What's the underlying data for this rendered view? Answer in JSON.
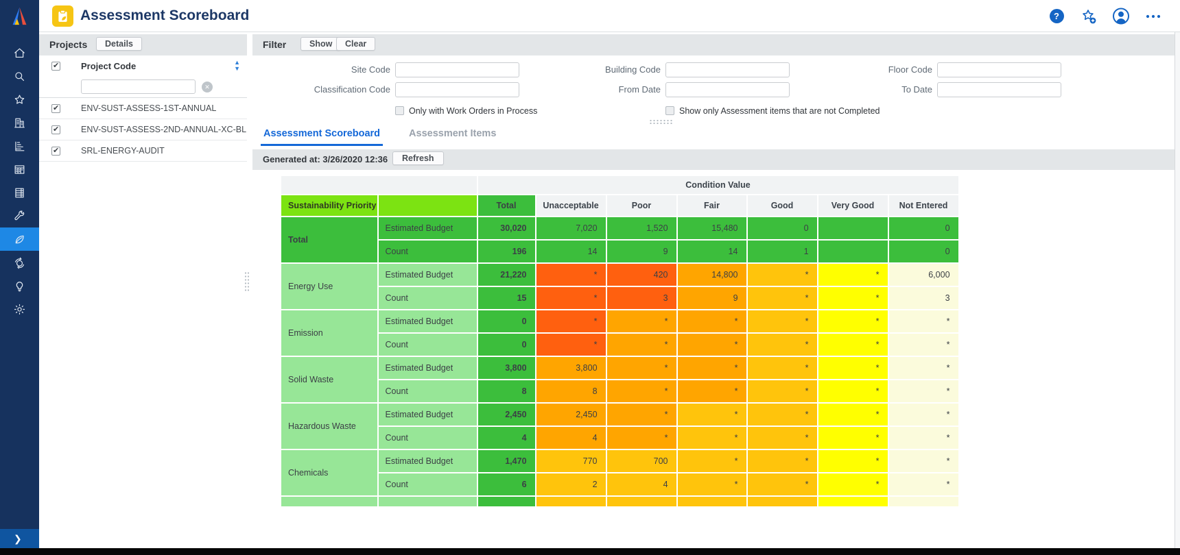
{
  "app": {
    "title": "Assessment Scoreboard"
  },
  "topbar": {
    "icons": [
      {
        "name": "help"
      },
      {
        "name": "favorite-add"
      },
      {
        "name": "user-profile"
      },
      {
        "name": "more"
      }
    ]
  },
  "sidebar": {
    "items": [
      {
        "name": "home"
      },
      {
        "name": "search"
      },
      {
        "name": "favorites"
      },
      {
        "name": "buildings"
      },
      {
        "name": "reports"
      },
      {
        "name": "planner"
      },
      {
        "name": "records"
      },
      {
        "name": "tools"
      },
      {
        "name": "sustainability"
      },
      {
        "name": "globe"
      },
      {
        "name": "ideas"
      },
      {
        "name": "settings"
      }
    ],
    "active": "sustainability",
    "expand_chevron": "❯"
  },
  "projects": {
    "title": "Projects",
    "details_button": "Details",
    "column_header": "Project Code",
    "select_all_checked": true,
    "filter_value": "",
    "rows": [
      {
        "code": "ENV-SUST-ASSESS-1ST-ANNUAL",
        "checked": true
      },
      {
        "code": "ENV-SUST-ASSESS-2ND-ANNUAL-XC-BL",
        "checked": true
      },
      {
        "code": "SRL-ENERGY-AUDIT",
        "checked": true
      }
    ]
  },
  "filter": {
    "title": "Filter",
    "buttons": {
      "show": "Show",
      "clear": "Clear"
    },
    "fields": [
      {
        "label": "Site Code",
        "value": ""
      },
      {
        "label": "Building Code",
        "value": ""
      },
      {
        "label": "Floor Code",
        "value": ""
      },
      {
        "label": "Classification Code",
        "value": ""
      },
      {
        "label": "From Date",
        "value": ""
      },
      {
        "label": "To Date",
        "value": ""
      }
    ],
    "checkboxes": [
      {
        "label": "Only with Work Orders in Process",
        "checked": false
      },
      {
        "label": "Show only Assessment items that are not Completed",
        "checked": false
      }
    ]
  },
  "tabs": [
    {
      "label": "Assessment Scoreboard",
      "active": true
    },
    {
      "label": "Assessment Items",
      "active": false
    }
  ],
  "toolbar": {
    "generated_at": "Generated at: 3/26/2020 12:36",
    "refresh": "Refresh"
  },
  "scoreboard": {
    "condition_header": "Condition Value",
    "row_axis_label": "Sustainability Priority",
    "columns": [
      "Total",
      "Unacceptable",
      "Poor",
      "Fair",
      "Good",
      "Very Good",
      "Not Entered"
    ],
    "metrics": [
      "Estimated Budget",
      "Count"
    ],
    "colors": {
      "green": "#3cbe3c",
      "lime": "#7ce312",
      "lightgreen": "#97e697",
      "redorange": "#ff600f",
      "orange": "#ffa500",
      "amber": "#ffc40c",
      "yellow": "#ffff00",
      "cream": "#fbfbdc"
    },
    "groups": [
      {
        "category": "Total",
        "bold": true,
        "band": "green",
        "rows": [
          {
            "metric": "Estimated Budget",
            "cells": [
              {
                "v": "30,020",
                "c": "green"
              },
              {
                "v": "7,020",
                "c": "green"
              },
              {
                "v": "1,520",
                "c": "green"
              },
              {
                "v": "15,480",
                "c": "green"
              },
              {
                "v": "0",
                "c": "green"
              },
              {
                "v": "",
                "c": "green"
              },
              {
                "v": "0",
                "c": "green"
              }
            ]
          },
          {
            "metric": "Count",
            "cells": [
              {
                "v": "196",
                "c": "green"
              },
              {
                "v": "14",
                "c": "green"
              },
              {
                "v": "9",
                "c": "green"
              },
              {
                "v": "14",
                "c": "green"
              },
              {
                "v": "1",
                "c": "green"
              },
              {
                "v": "",
                "c": "green"
              },
              {
                "v": "0",
                "c": "green"
              }
            ]
          }
        ]
      },
      {
        "category": "Energy Use",
        "bold": false,
        "band": "lightgreen",
        "rows": [
          {
            "metric": "Estimated Budget",
            "cells": [
              {
                "v": "21,220",
                "c": "green"
              },
              {
                "v": "*",
                "c": "redorange"
              },
              {
                "v": "420",
                "c": "redorange"
              },
              {
                "v": "14,800",
                "c": "orange"
              },
              {
                "v": "*",
                "c": "amber"
              },
              {
                "v": "*",
                "c": "yellow"
              },
              {
                "v": "6,000",
                "c": "cream"
              }
            ]
          },
          {
            "metric": "Count",
            "cells": [
              {
                "v": "15",
                "c": "green"
              },
              {
                "v": "*",
                "c": "redorange"
              },
              {
                "v": "3",
                "c": "redorange"
              },
              {
                "v": "9",
                "c": "orange"
              },
              {
                "v": "*",
                "c": "amber"
              },
              {
                "v": "*",
                "c": "yellow"
              },
              {
                "v": "3",
                "c": "cream"
              }
            ]
          }
        ]
      },
      {
        "category": "Emission",
        "bold": false,
        "band": "lightgreen",
        "rows": [
          {
            "metric": "Estimated Budget",
            "cells": [
              {
                "v": "0",
                "c": "green"
              },
              {
                "v": "*",
                "c": "redorange"
              },
              {
                "v": "*",
                "c": "orange"
              },
              {
                "v": "*",
                "c": "orange"
              },
              {
                "v": "*",
                "c": "amber"
              },
              {
                "v": "*",
                "c": "yellow"
              },
              {
                "v": "*",
                "c": "cream"
              }
            ]
          },
          {
            "metric": "Count",
            "cells": [
              {
                "v": "0",
                "c": "green"
              },
              {
                "v": "*",
                "c": "redorange"
              },
              {
                "v": "*",
                "c": "orange"
              },
              {
                "v": "*",
                "c": "orange"
              },
              {
                "v": "*",
                "c": "amber"
              },
              {
                "v": "*",
                "c": "yellow"
              },
              {
                "v": "*",
                "c": "cream"
              }
            ]
          }
        ]
      },
      {
        "category": "Solid Waste",
        "bold": false,
        "band": "lightgreen",
        "rows": [
          {
            "metric": "Estimated Budget",
            "cells": [
              {
                "v": "3,800",
                "c": "green"
              },
              {
                "v": "3,800",
                "c": "orange"
              },
              {
                "v": "*",
                "c": "orange"
              },
              {
                "v": "*",
                "c": "orange"
              },
              {
                "v": "*",
                "c": "amber"
              },
              {
                "v": "*",
                "c": "yellow"
              },
              {
                "v": "*",
                "c": "cream"
              }
            ]
          },
          {
            "metric": "Count",
            "cells": [
              {
                "v": "8",
                "c": "green"
              },
              {
                "v": "8",
                "c": "orange"
              },
              {
                "v": "*",
                "c": "orange"
              },
              {
                "v": "*",
                "c": "orange"
              },
              {
                "v": "*",
                "c": "amber"
              },
              {
                "v": "*",
                "c": "yellow"
              },
              {
                "v": "*",
                "c": "cream"
              }
            ]
          }
        ]
      },
      {
        "category": "Hazardous Waste",
        "bold": false,
        "band": "lightgreen",
        "rows": [
          {
            "metric": "Estimated Budget",
            "cells": [
              {
                "v": "2,450",
                "c": "green"
              },
              {
                "v": "2,450",
                "c": "orange"
              },
              {
                "v": "*",
                "c": "orange"
              },
              {
                "v": "*",
                "c": "amber"
              },
              {
                "v": "*",
                "c": "amber"
              },
              {
                "v": "*",
                "c": "yellow"
              },
              {
                "v": "*",
                "c": "cream"
              }
            ]
          },
          {
            "metric": "Count",
            "cells": [
              {
                "v": "4",
                "c": "green"
              },
              {
                "v": "4",
                "c": "orange"
              },
              {
                "v": "*",
                "c": "orange"
              },
              {
                "v": "*",
                "c": "amber"
              },
              {
                "v": "*",
                "c": "amber"
              },
              {
                "v": "*",
                "c": "yellow"
              },
              {
                "v": "*",
                "c": "cream"
              }
            ]
          }
        ]
      },
      {
        "category": "Chemicals",
        "bold": false,
        "band": "lightgreen",
        "rows": [
          {
            "metric": "Estimated Budget",
            "cells": [
              {
                "v": "1,470",
                "c": "green"
              },
              {
                "v": "770",
                "c": "amber"
              },
              {
                "v": "700",
                "c": "amber"
              },
              {
                "v": "*",
                "c": "amber"
              },
              {
                "v": "*",
                "c": "amber"
              },
              {
                "v": "*",
                "c": "yellow"
              },
              {
                "v": "*",
                "c": "cream"
              }
            ]
          },
          {
            "metric": "Count",
            "cells": [
              {
                "v": "6",
                "c": "green"
              },
              {
                "v": "2",
                "c": "amber"
              },
              {
                "v": "4",
                "c": "amber"
              },
              {
                "v": "*",
                "c": "amber"
              },
              {
                "v": "*",
                "c": "amber"
              },
              {
                "v": "*",
                "c": "yellow"
              },
              {
                "v": "*",
                "c": "cream"
              }
            ]
          }
        ]
      },
      {
        "category": "",
        "bold": false,
        "band": "lightgreen",
        "partial": true,
        "rows": [
          {
            "metric": "",
            "cells": [
              {
                "v": "",
                "c": "green"
              },
              {
                "v": "",
                "c": "amber"
              },
              {
                "v": "",
                "c": "amber"
              },
              {
                "v": "",
                "c": "amber"
              },
              {
                "v": "",
                "c": "amber"
              },
              {
                "v": "",
                "c": "yellow"
              },
              {
                "v": "",
                "c": "cream"
              }
            ]
          }
        ]
      }
    ]
  }
}
